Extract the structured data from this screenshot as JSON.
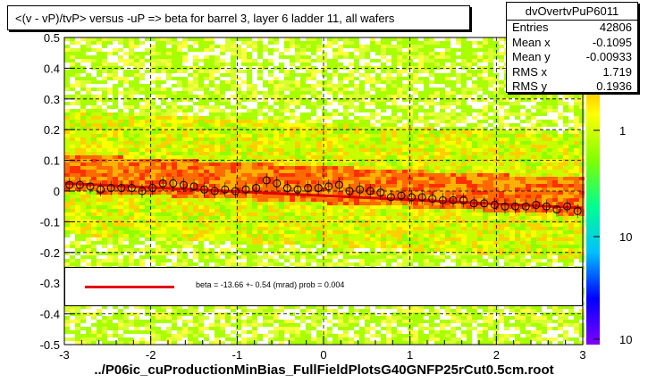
{
  "title": "<(v - vP)/tvP> versus  -uP => beta for barrel 3, layer 6 ladder 11, all wafers",
  "stats": {
    "name": "dvOvertvPuP6011",
    "rows": [
      {
        "label": "Entries",
        "value": "42806"
      },
      {
        "label": "Mean x",
        "value": "-0.1095"
      },
      {
        "label": "Mean y",
        "value": "-0.00933"
      },
      {
        "label": "RMS x",
        "value": "1.719"
      },
      {
        "label": "RMS y",
        "value": "0.1936"
      }
    ]
  },
  "legend": {
    "text": "beta =  -13.66 +-  0.54 (mrad) prob = 0.004",
    "line_color": "#e00000"
  },
  "footer": "../P06ic_cuProductionMinBias_FullFieldPlotsG40GNFP25rCut0.5cm.root",
  "colors": {
    "marker": "#000000",
    "fit": "#e00000"
  },
  "chart_data": {
    "type": "scatter",
    "xlim": [
      -3,
      3
    ],
    "ylim": [
      -0.5,
      0.5
    ],
    "x_ticks": [
      "-3",
      "-2",
      "-1",
      "0",
      "1",
      "2",
      "3"
    ],
    "y_ticks": [
      "-0.5",
      "-0.4",
      "-0.3",
      "-0.2",
      "-0.1",
      "0",
      "0.1",
      "0.2",
      "0.3",
      "0.4",
      "0.5"
    ],
    "colorbar_ticks": [
      "1",
      "10",
      "10"
    ],
    "grid": true,
    "fit": {
      "x": [
        -3,
        3
      ],
      "y": [
        0.025,
        -0.055
      ]
    },
    "profile": {
      "x": [
        -2.94,
        -2.82,
        -2.7,
        -2.58,
        -2.46,
        -2.34,
        -2.22,
        -2.1,
        -1.98,
        -1.86,
        -1.74,
        -1.62,
        -1.5,
        -1.38,
        -1.26,
        -1.14,
        -1.02,
        -0.9,
        -0.78,
        -0.66,
        -0.54,
        -0.42,
        -0.3,
        -0.18,
        -0.06,
        0.06,
        0.18,
        0.3,
        0.42,
        0.54,
        0.66,
        0.78,
        0.9,
        1.02,
        1.14,
        1.26,
        1.38,
        1.5,
        1.62,
        1.74,
        1.86,
        1.98,
        2.1,
        2.22,
        2.34,
        2.46,
        2.58,
        2.7,
        2.82,
        2.94
      ],
      "y": [
        0.02,
        0.02,
        0.015,
        0.005,
        0.01,
        0.01,
        0.01,
        0.0,
        0.01,
        0.025,
        0.025,
        0.02,
        0.015,
        0.005,
        0.0,
        0.005,
        0.0,
        0.005,
        0.01,
        0.035,
        0.025,
        0.01,
        0.005,
        0.01,
        0.01,
        0.015,
        0.02,
        0.0,
        0.005,
        0.0,
        -0.005,
        -0.02,
        -0.015,
        -0.02,
        -0.02,
        -0.025,
        -0.03,
        -0.03,
        -0.03,
        -0.04,
        -0.04,
        -0.045,
        -0.05,
        -0.05,
        -0.05,
        -0.045,
        -0.05,
        -0.06,
        -0.05,
        -0.065
      ]
    }
  }
}
